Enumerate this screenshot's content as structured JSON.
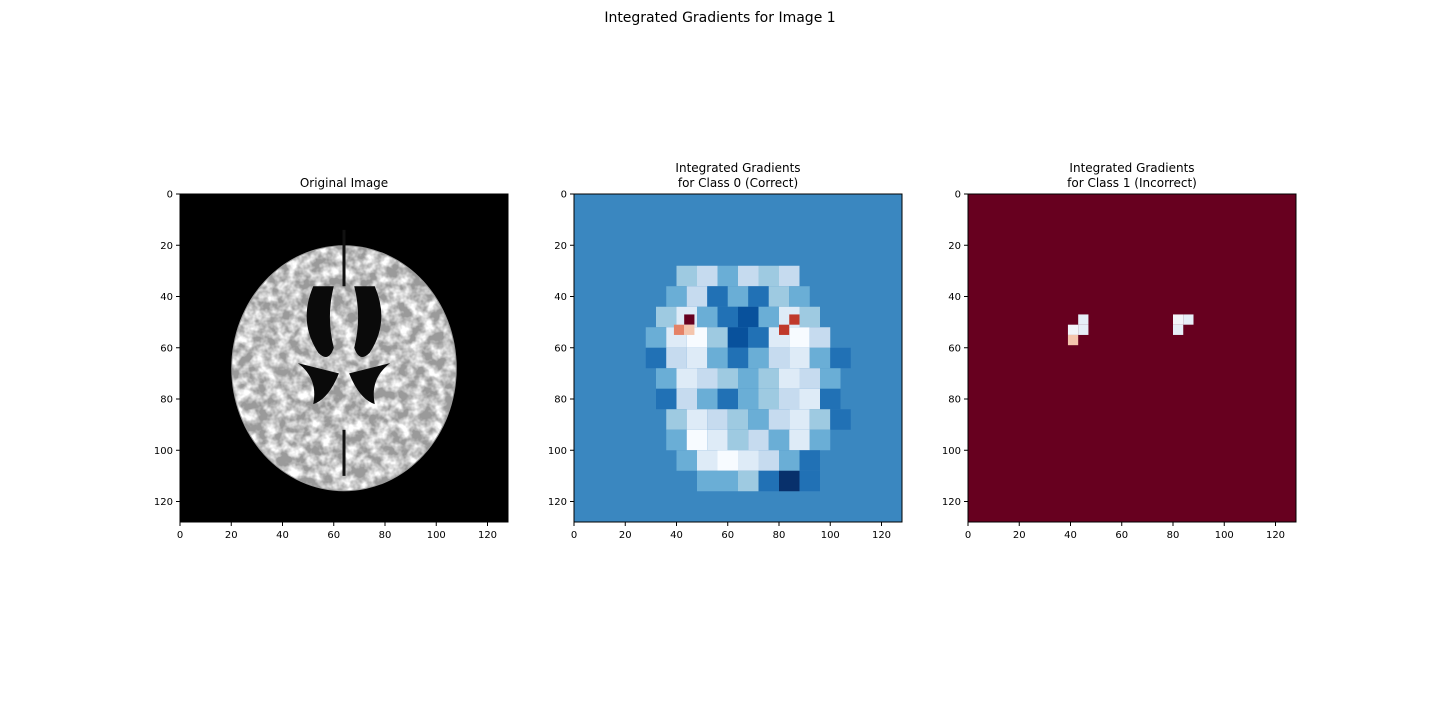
{
  "figure": {
    "suptitle": "Integrated Gradients for Image 1"
  },
  "chart_data": [
    {
      "type": "heatmap",
      "title": "Original Image",
      "colormap": "gray",
      "content": "axial brain MRI slice",
      "xlim": [
        0,
        128
      ],
      "ylim": [
        128,
        0
      ],
      "xticks": [
        0,
        20,
        40,
        60,
        80,
        100,
        120
      ],
      "yticks": [
        0,
        20,
        40,
        60,
        80,
        100,
        120
      ],
      "background_color": "#000000",
      "grid": false
    },
    {
      "type": "heatmap",
      "title_lines": [
        "Integrated Gradients",
        "for Class 0 (Correct)"
      ],
      "colormap": "RdBu",
      "background_color": "#3a87c0",
      "xlim": [
        0,
        128
      ],
      "ylim": [
        128,
        0
      ],
      "xticks": [
        0,
        20,
        40,
        60,
        80,
        100,
        120
      ],
      "yticks": [
        0,
        20,
        40,
        60,
        80,
        100,
        120
      ],
      "grid": false,
      "highlights": [
        {
          "x": 43,
          "y": 47,
          "color": "#67001f"
        },
        {
          "x": 39,
          "y": 51,
          "color": "#e58267"
        },
        {
          "x": 43,
          "y": 51,
          "color": "#f4c5ad"
        },
        {
          "x": 84,
          "y": 47,
          "color": "#c0392b"
        },
        {
          "x": 80,
          "y": 51,
          "color": "#c0392b"
        }
      ]
    },
    {
      "type": "heatmap",
      "title_lines": [
        "Integrated Gradients",
        "for Class 1 (Incorrect)"
      ],
      "colormap": "RdBu",
      "background_color": "#67001f",
      "xlim": [
        0,
        128
      ],
      "ylim": [
        128,
        0
      ],
      "xticks": [
        0,
        20,
        40,
        60,
        80,
        100,
        120
      ],
      "yticks": [
        0,
        20,
        40,
        60,
        80,
        100,
        120
      ],
      "grid": false,
      "highlights": [
        {
          "x": 43,
          "y": 47,
          "color": "#e6eef7"
        },
        {
          "x": 43,
          "y": 51,
          "color": "#e6eef7"
        },
        {
          "x": 39,
          "y": 51,
          "color": "#f2f5fa"
        },
        {
          "x": 39,
          "y": 55,
          "color": "#f4c5ad"
        },
        {
          "x": 80,
          "y": 47,
          "color": "#f2f5fa"
        },
        {
          "x": 84,
          "y": 47,
          "color": "#e6eef7"
        },
        {
          "x": 80,
          "y": 51,
          "color": "#e6eef7"
        }
      ]
    }
  ]
}
